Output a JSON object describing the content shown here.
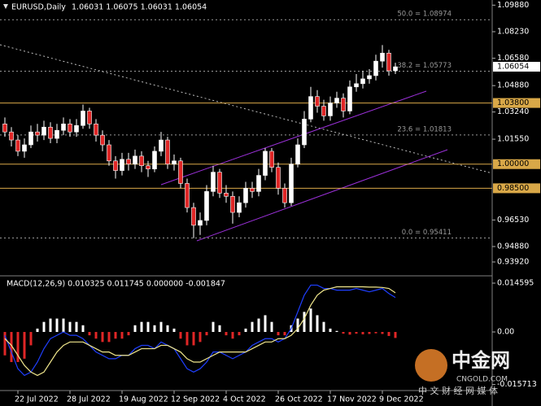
{
  "chart_data": [
    {
      "type": "candlestick",
      "title": "EURUSD,Daily",
      "quote": "1.06031 1.06075 1.06031 1.06054",
      "categories": [
        null,
        null,
        "22 Jul 2022",
        null,
        null,
        null,
        null,
        null,
        null,
        null,
        "28 Jul 2022",
        null,
        null,
        null,
        null,
        null,
        null,
        null,
        "19 Aug 2022",
        null,
        null,
        null,
        null,
        null,
        null,
        null,
        "12 Sep 2022",
        null,
        null,
        null,
        null,
        null,
        null,
        null,
        "4 Oct 2022",
        null,
        null,
        null,
        null,
        null,
        null,
        null,
        "26 Oct 2022",
        null,
        null,
        null,
        null,
        null,
        null,
        null,
        "17 Nov 2022",
        null,
        null,
        null,
        null,
        null,
        null,
        null,
        "9 Dec 2022",
        null,
        null
      ],
      "open": [
        1.025,
        1.02,
        1.015,
        1.008,
        1.012,
        1.02,
        1.018,
        1.023,
        1.016,
        1.021,
        1.025,
        1.02,
        1.024,
        1.033,
        1.025,
        1.018,
        1.012,
        1.002,
        0.996,
        1.003,
        1.0,
        1.005,
        0.999,
        0.997,
        1.008,
        1.015,
        1.0,
        1.002,
        0.988,
        0.973,
        0.962,
        0.965,
        0.983,
        0.995,
        0.982,
        0.98,
        0.97,
        0.976,
        0.985,
        0.983,
        0.993,
        1.008,
        0.998,
        0.985,
        0.976,
        1.0,
        1.012,
        1.028,
        1.042,
        1.036,
        1.03,
        1.038,
        1.041,
        1.033,
        1.048,
        1.05,
        1.053,
        1.055,
        1.064,
        1.069,
        1.058
      ],
      "high": [
        1.029,
        1.023,
        1.018,
        1.016,
        1.024,
        1.025,
        1.027,
        1.026,
        1.025,
        1.029,
        1.028,
        1.028,
        1.037,
        1.035,
        1.028,
        1.021,
        1.015,
        1.005,
        1.007,
        1.007,
        1.009,
        1.008,
        1.002,
        1.011,
        1.02,
        1.017,
        1.006,
        1.004,
        0.991,
        0.976,
        0.97,
        0.987,
        0.999,
        0.997,
        0.987,
        0.983,
        0.98,
        0.989,
        0.989,
        0.997,
        1.01,
        1.01,
        1.001,
        0.988,
        1.004,
        1.016,
        1.033,
        1.048,
        1.046,
        1.04,
        1.042,
        1.045,
        1.044,
        1.052,
        1.056,
        1.058,
        1.059,
        1.068,
        1.074,
        1.071,
        1.063
      ],
      "low": [
        1.017,
        1.011,
        1.005,
        1.004,
        1.01,
        1.014,
        1.015,
        1.013,
        1.013,
        1.018,
        1.017,
        1.017,
        1.022,
        1.022,
        1.014,
        1.008,
        0.999,
        0.991,
        0.993,
        0.996,
        0.997,
        0.995,
        0.992,
        0.995,
        1.005,
        0.997,
        0.996,
        0.985,
        0.97,
        0.954,
        0.956,
        0.962,
        0.98,
        0.979,
        0.976,
        0.963,
        0.967,
        0.973,
        0.979,
        0.98,
        0.99,
        0.995,
        0.981,
        0.973,
        0.974,
        0.998,
        1.01,
        1.026,
        1.032,
        1.027,
        1.027,
        1.035,
        1.029,
        1.031,
        1.045,
        1.047,
        1.05,
        1.052,
        1.06,
        1.055,
        1.056
      ],
      "close": [
        1.02,
        1.015,
        1.008,
        1.012,
        1.02,
        1.018,
        1.023,
        1.016,
        1.021,
        1.025,
        1.02,
        1.024,
        1.033,
        1.025,
        1.018,
        1.012,
        1.002,
        0.996,
        1.003,
        1.0,
        1.005,
        0.999,
        0.997,
        1.008,
        1.015,
        1.0,
        1.002,
        0.988,
        0.973,
        0.962,
        0.965,
        0.983,
        0.995,
        0.982,
        0.98,
        0.97,
        0.976,
        0.985,
        0.983,
        0.993,
        1.008,
        0.998,
        0.985,
        0.976,
        1.0,
        1.012,
        1.028,
        1.042,
        1.036,
        1.03,
        1.038,
        1.041,
        1.033,
        1.048,
        1.05,
        1.053,
        1.055,
        1.064,
        1.069,
        1.058,
        1.0605
      ],
      "up_color": "#ffffff",
      "down_color": "#e02626",
      "ylim": [
        0.9311,
        1.102
      ],
      "yticks": [
        {
          "value": 1.0988,
          "label": "1.09880"
        },
        {
          "value": 1.0823,
          "label": "1.08230"
        },
        {
          "value": 1.0658,
          "label": "1.06580"
        },
        {
          "value": 1.0488,
          "label": "1.04880"
        },
        {
          "value": 1.0324,
          "label": "1.03240"
        },
        {
          "value": 1.0155,
          "label": "1.01550"
        },
        {
          "value": 0.9653,
          "label": "0.96530"
        },
        {
          "value": 0.9488,
          "label": "0.94880"
        },
        {
          "value": 0.9392,
          "label": "0.93920"
        }
      ],
      "levels": [
        {
          "value": 1.038,
          "label": "1.03800"
        },
        {
          "value": 1.0,
          "label": "1.00000"
        },
        {
          "value": 0.985,
          "label": "0.98500"
        }
      ],
      "level_color": "#d9a848",
      "fib_levels": [
        {
          "value": 1.08974,
          "label": "50.0 = 1.08974"
        },
        {
          "value": 1.05773,
          "label": "38.2 = 1.05773"
        },
        {
          "value": 1.01813,
          "label": "23.6 = 1.01813"
        },
        {
          "value": 0.95411,
          "label": "0.0 = 0.95411"
        }
      ],
      "fib_color": "#9a9a9a",
      "last_price": {
        "value": 1.06054,
        "label": "1.06054"
      }
    },
    {
      "type": "macd",
      "title": "MACD(12,26,9) 0.010325 0.011745 0.000000 -0.001847",
      "values": [
        -0.007,
        -0.009,
        -0.009,
        -0.008,
        -0.004,
        0.001,
        0.003,
        0.004,
        0.004,
        0.004,
        0.003,
        0.003,
        0.002,
        -0.001,
        -0.002,
        -0.003,
        -0.003,
        -0.002,
        -0.002,
        -0.001,
        0.002,
        0.003,
        0.003,
        0.002,
        0.003,
        0.002,
        0.001,
        -0.002,
        -0.004,
        -0.004,
        -0.003,
        -0.001,
        0.003,
        0.002,
        -0.001,
        -0.002,
        -0.001,
        0.001,
        0.003,
        0.004,
        0.005,
        0.003,
        -0.001,
        -0.001,
        0.002,
        0.004,
        0.006,
        0.007,
        0.005,
        0.003,
        0.001,
        0.0003,
        -0.0005,
        -0.0008,
        -0.0005,
        -0.0007,
        -0.0006,
        -0.0004,
        -0.0006,
        -0.0012,
        -0.0018
      ],
      "positive_color": "#ffffff",
      "negative_color": "#e02626",
      "lines": [
        {
          "color": "#1f3fff",
          "values": [
            -0.001,
            -0.006,
            -0.011,
            -0.013,
            -0.012,
            -0.009,
            -0.005,
            -0.002,
            -0.001,
            0.0,
            -0.001,
            -0.001,
            -0.002,
            -0.004,
            -0.006,
            -0.007,
            -0.008,
            -0.008,
            -0.007,
            -0.007,
            -0.005,
            -0.004,
            -0.004,
            -0.005,
            -0.003,
            -0.004,
            -0.005,
            -0.008,
            -0.011,
            -0.012,
            -0.011,
            -0.009,
            -0.006,
            -0.006,
            -0.007,
            -0.008,
            -0.007,
            -0.006,
            -0.004,
            -0.003,
            -0.002,
            -0.002,
            -0.003,
            -0.002,
            0.001,
            0.006,
            0.011,
            0.014,
            0.014,
            0.013,
            0.013,
            0.0125,
            0.0125,
            0.0125,
            0.013,
            0.0125,
            0.012,
            0.0125,
            0.013,
            0.0115,
            0.0103
          ]
        },
        {
          "color": "#f0e68c",
          "values": [
            -0.002,
            -0.004,
            -0.007,
            -0.01,
            -0.012,
            -0.013,
            -0.012,
            -0.009,
            -0.006,
            -0.004,
            -0.003,
            -0.003,
            -0.003,
            -0.004,
            -0.005,
            -0.006,
            -0.006,
            -0.007,
            -0.007,
            -0.007,
            -0.006,
            -0.005,
            -0.005,
            -0.005,
            -0.004,
            -0.004,
            -0.005,
            -0.006,
            -0.008,
            -0.009,
            -0.009,
            -0.008,
            -0.007,
            -0.006,
            -0.006,
            -0.006,
            -0.006,
            -0.006,
            -0.005,
            -0.004,
            -0.003,
            -0.003,
            -0.002,
            -0.002,
            -0.001,
            0.001,
            0.004,
            0.008,
            0.011,
            0.0125,
            0.013,
            0.0135,
            0.0135,
            0.0135,
            0.0135,
            0.0135,
            0.0134,
            0.0134,
            0.0133,
            0.013,
            0.0117
          ]
        }
      ],
      "ylim": [
        -0.01703,
        0.01654
      ],
      "yticks": [
        0.014595,
        {
          "value": 0,
          "label": "0.00"
        },
        -0.015713
      ]
    }
  ],
  "watermark": {
    "title": "中金网",
    "site": "CNGOLD.COM",
    "slogan": "中 文 财 经 网 媒 体"
  }
}
